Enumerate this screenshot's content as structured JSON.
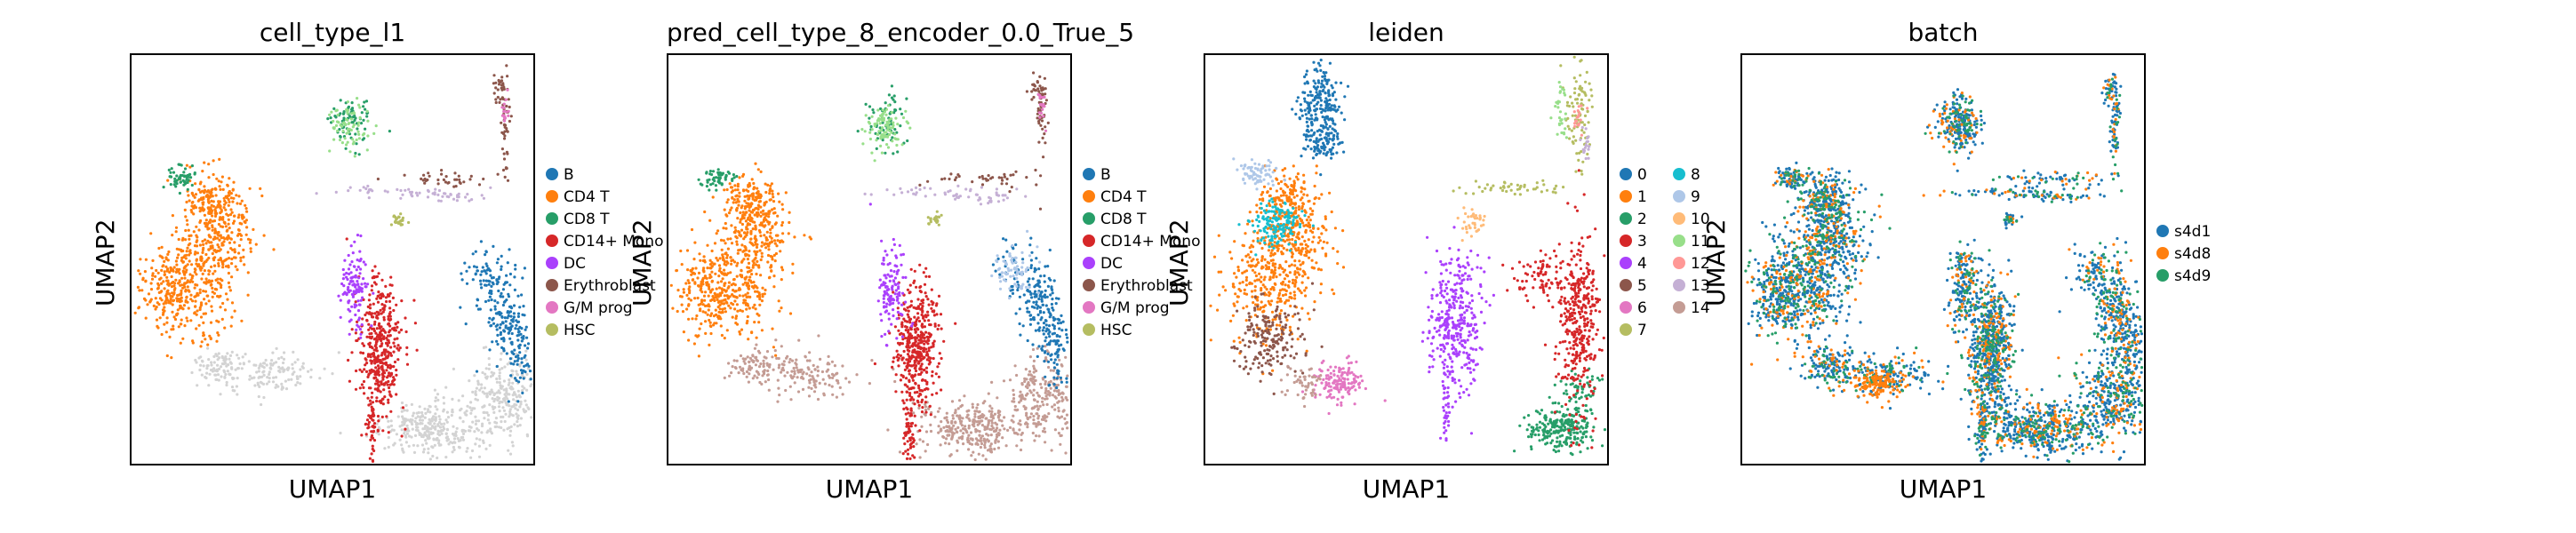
{
  "chart_data": [
    {
      "type": "scatter",
      "title": "cell_type_l1",
      "xlabel": "UMAP1",
      "ylabel": "UMAP2",
      "grid": false,
      "legend_position": "right",
      "categories": [
        {
          "name": "B",
          "color": "#1f77b4"
        },
        {
          "name": "CD4 T",
          "color": "#ff7f0e"
        },
        {
          "name": "CD8 T",
          "color": "#279e68"
        },
        {
          "name": "CD14+ Mono",
          "color": "#d62728"
        },
        {
          "name": "DC",
          "color": "#aa40fc"
        },
        {
          "name": "Erythroblast",
          "color": "#8c564b"
        },
        {
          "name": "G/M prog",
          "color": "#e377c2"
        },
        {
          "name": "HSC",
          "color": "#b5bd61"
        }
      ]
    },
    {
      "type": "scatter",
      "title": "pred_cell_type_8_encoder_0.0_True_5",
      "xlabel": "UMAP1",
      "ylabel": "UMAP2",
      "grid": false,
      "legend_position": "right",
      "categories": [
        {
          "name": "B",
          "color": "#1f77b4"
        },
        {
          "name": "CD4 T",
          "color": "#ff7f0e"
        },
        {
          "name": "CD8 T",
          "color": "#279e68"
        },
        {
          "name": "CD14+ Mono",
          "color": "#d62728"
        },
        {
          "name": "DC",
          "color": "#aa40fc"
        },
        {
          "name": "Erythroblast",
          "color": "#8c564b"
        },
        {
          "name": "G/M prog",
          "color": "#e377c2"
        },
        {
          "name": "HSC",
          "color": "#b5bd61"
        }
      ]
    },
    {
      "type": "scatter",
      "title": "leiden",
      "xlabel": "UMAP1",
      "ylabel": "UMAP2",
      "grid": false,
      "legend_position": "right",
      "categories": [
        {
          "name": "0",
          "color": "#1f77b4"
        },
        {
          "name": "1",
          "color": "#ff7f0e"
        },
        {
          "name": "2",
          "color": "#279e68"
        },
        {
          "name": "3",
          "color": "#d62728"
        },
        {
          "name": "4",
          "color": "#aa40fc"
        },
        {
          "name": "5",
          "color": "#8c564b"
        },
        {
          "name": "6",
          "color": "#e377c2"
        },
        {
          "name": "7",
          "color": "#b5bd61"
        },
        {
          "name": "8",
          "color": "#17becf"
        },
        {
          "name": "9",
          "color": "#aec7e8"
        },
        {
          "name": "10",
          "color": "#ffbb78"
        },
        {
          "name": "11",
          "color": "#98df8a"
        },
        {
          "name": "12",
          "color": "#ff9896"
        },
        {
          "name": "13",
          "color": "#c5b0d5"
        },
        {
          "name": "14",
          "color": "#c49c94"
        }
      ]
    },
    {
      "type": "scatter",
      "title": "batch",
      "xlabel": "UMAP1",
      "ylabel": "UMAP2",
      "grid": false,
      "legend_position": "right",
      "categories": [
        {
          "name": "s4d1",
          "color": "#1f77b4"
        },
        {
          "name": "s4d8",
          "color": "#ff7f0e"
        },
        {
          "name": "s4d9",
          "color": "#279e68"
        }
      ]
    }
  ],
  "extra_colors": {
    "unlabeled": "#d3d3d3",
    "light_blue": "#aec7e8",
    "light_green": "#98df8a",
    "tan": "#c49c94",
    "pink": "#ff9896",
    "lavender": "#c5b0d5",
    "olive": "#b5bd61"
  }
}
